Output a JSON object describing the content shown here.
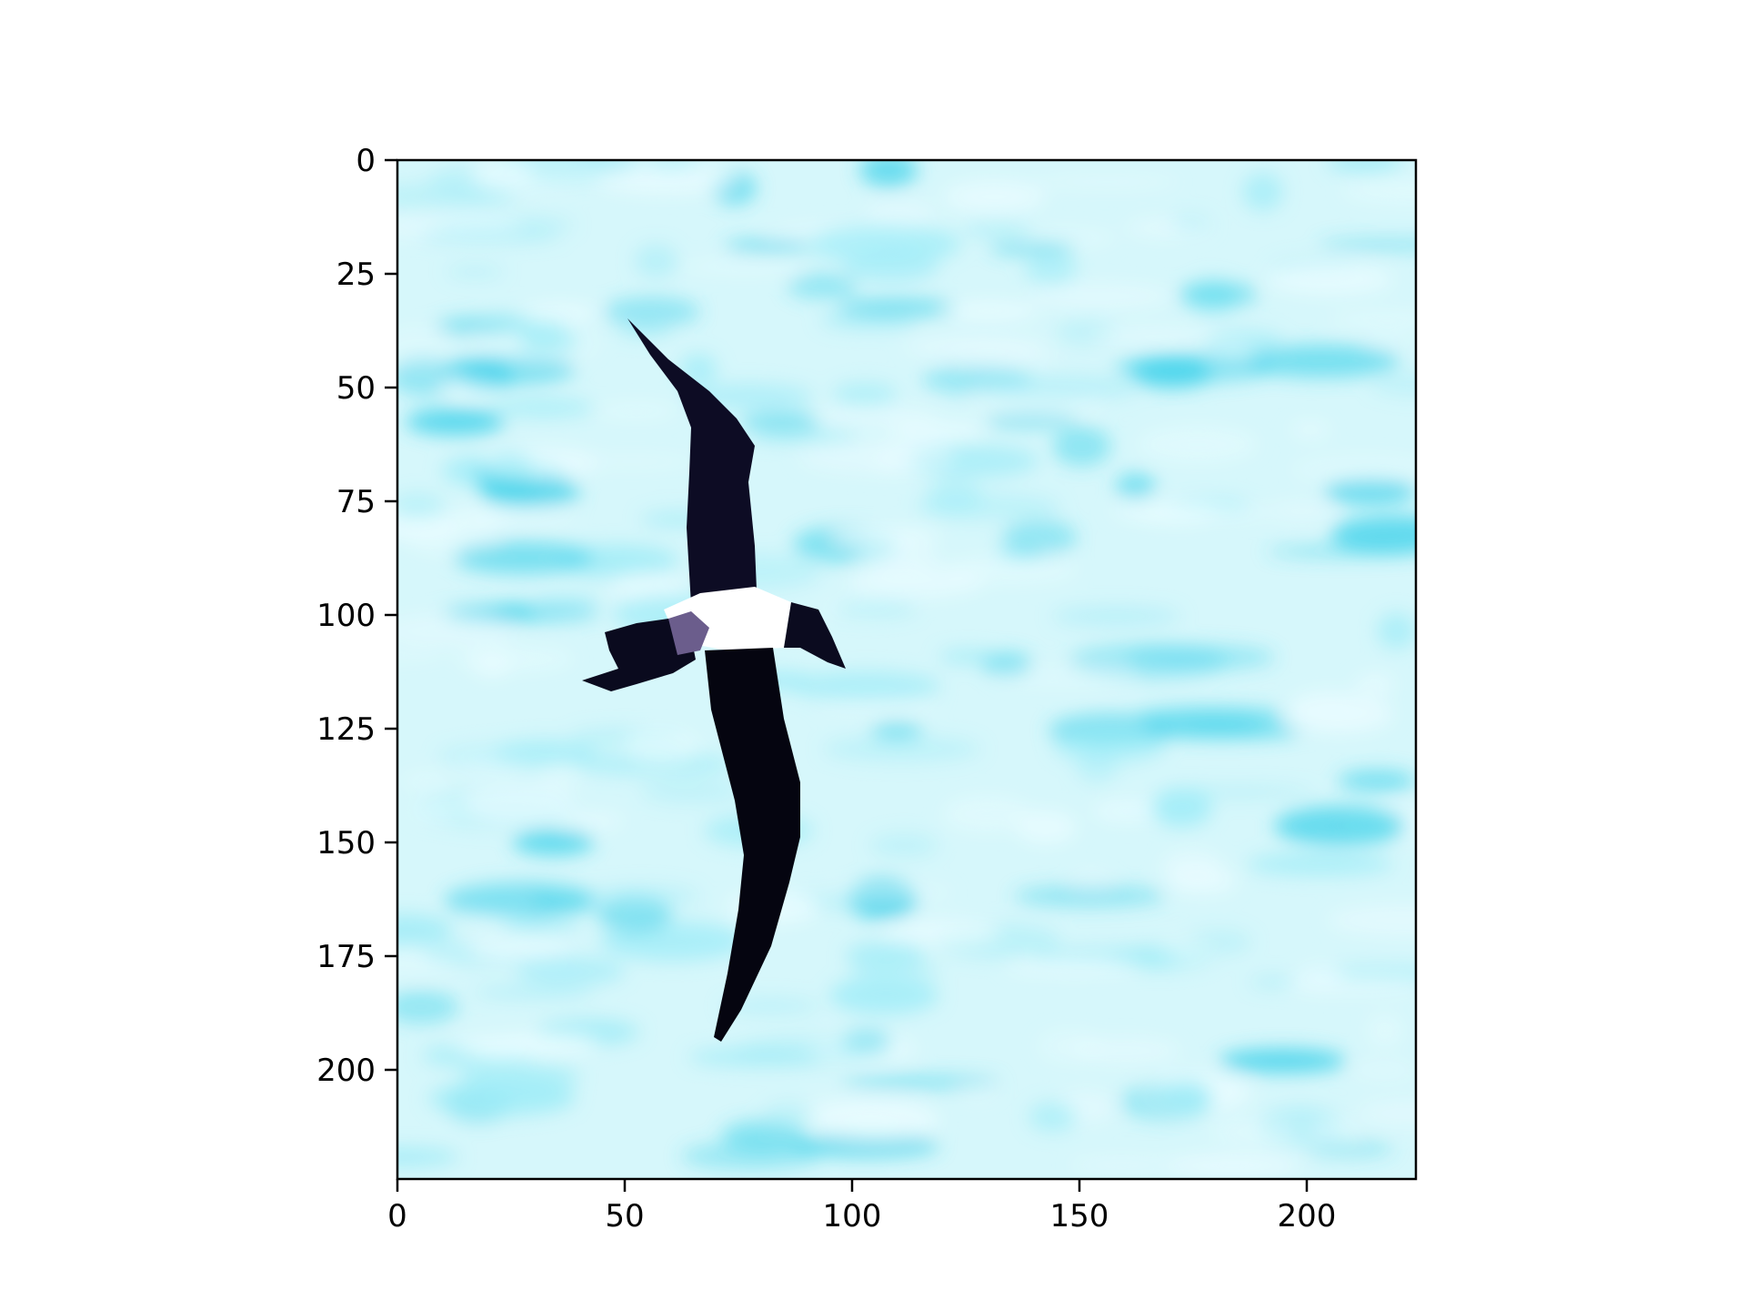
{
  "image": {
    "subject": "bird-in-flight-over-water",
    "x_axis": {
      "ticks": [
        0,
        50,
        100,
        150,
        200
      ],
      "range": [
        0,
        224
      ]
    },
    "y_axis": {
      "ticks": [
        0,
        25,
        50,
        75,
        100,
        125,
        150,
        175,
        200
      ],
      "range": [
        0,
        224
      ],
      "inverted": true
    },
    "colors": {
      "water_light": "#eafcff",
      "water_mid": "#9fecf7",
      "water_dark": "#3fd2ea",
      "bird_dark": "#0a0a1e",
      "bird_white": "#ffffff",
      "axis": "#000000"
    }
  }
}
